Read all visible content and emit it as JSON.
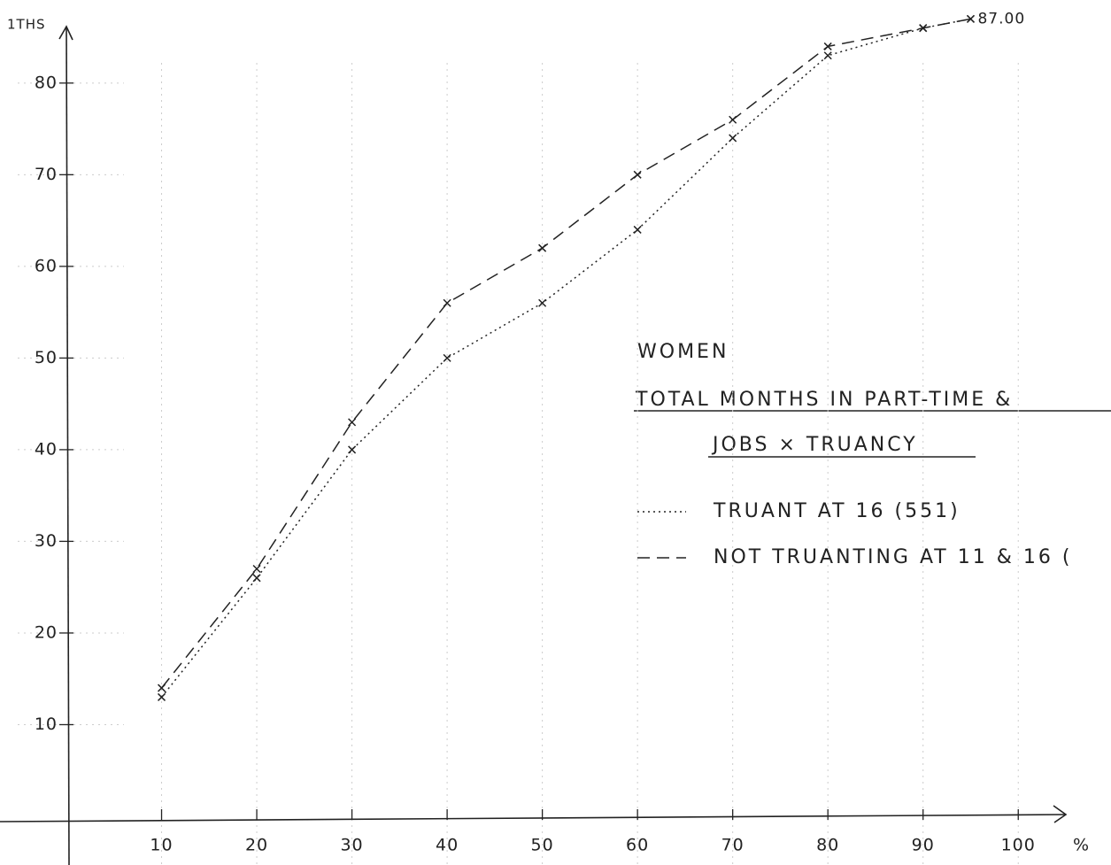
{
  "chart_data": {
    "type": "line",
    "title": "WOMEN",
    "subtitle": [
      "TOTAL MONTHS IN PART-TIME &",
      "JOBS × TRUANCY"
    ],
    "y_label": "1THS",
    "x_label": "%",
    "x": [
      10,
      20,
      30,
      40,
      50,
      60,
      70,
      80,
      90,
      95
    ],
    "series": [
      {
        "name": "TRUANT AT 16 (551)",
        "color": "#222222",
        "dash": "dotted",
        "values": [
          13,
          26,
          40,
          50,
          56,
          64,
          74,
          83,
          86,
          87
        ]
      },
      {
        "name": "NOT TRUANTING AT 11 & 16 (",
        "color": "#222222",
        "dash": "dashed",
        "values": [
          14,
          27,
          43,
          56,
          62,
          70,
          76,
          84,
          86,
          87
        ]
      }
    ],
    "annotations": [
      {
        "text": "87.00",
        "x": 95,
        "y": 87
      }
    ],
    "xlim": [
      0,
      105
    ],
    "ylim": [
      0,
      88
    ],
    "xticks": [
      10,
      20,
      30,
      40,
      50,
      60,
      70,
      80,
      90,
      100
    ],
    "yticks": [
      10,
      20,
      30,
      40,
      50,
      60,
      70,
      80
    ],
    "grid": true
  }
}
